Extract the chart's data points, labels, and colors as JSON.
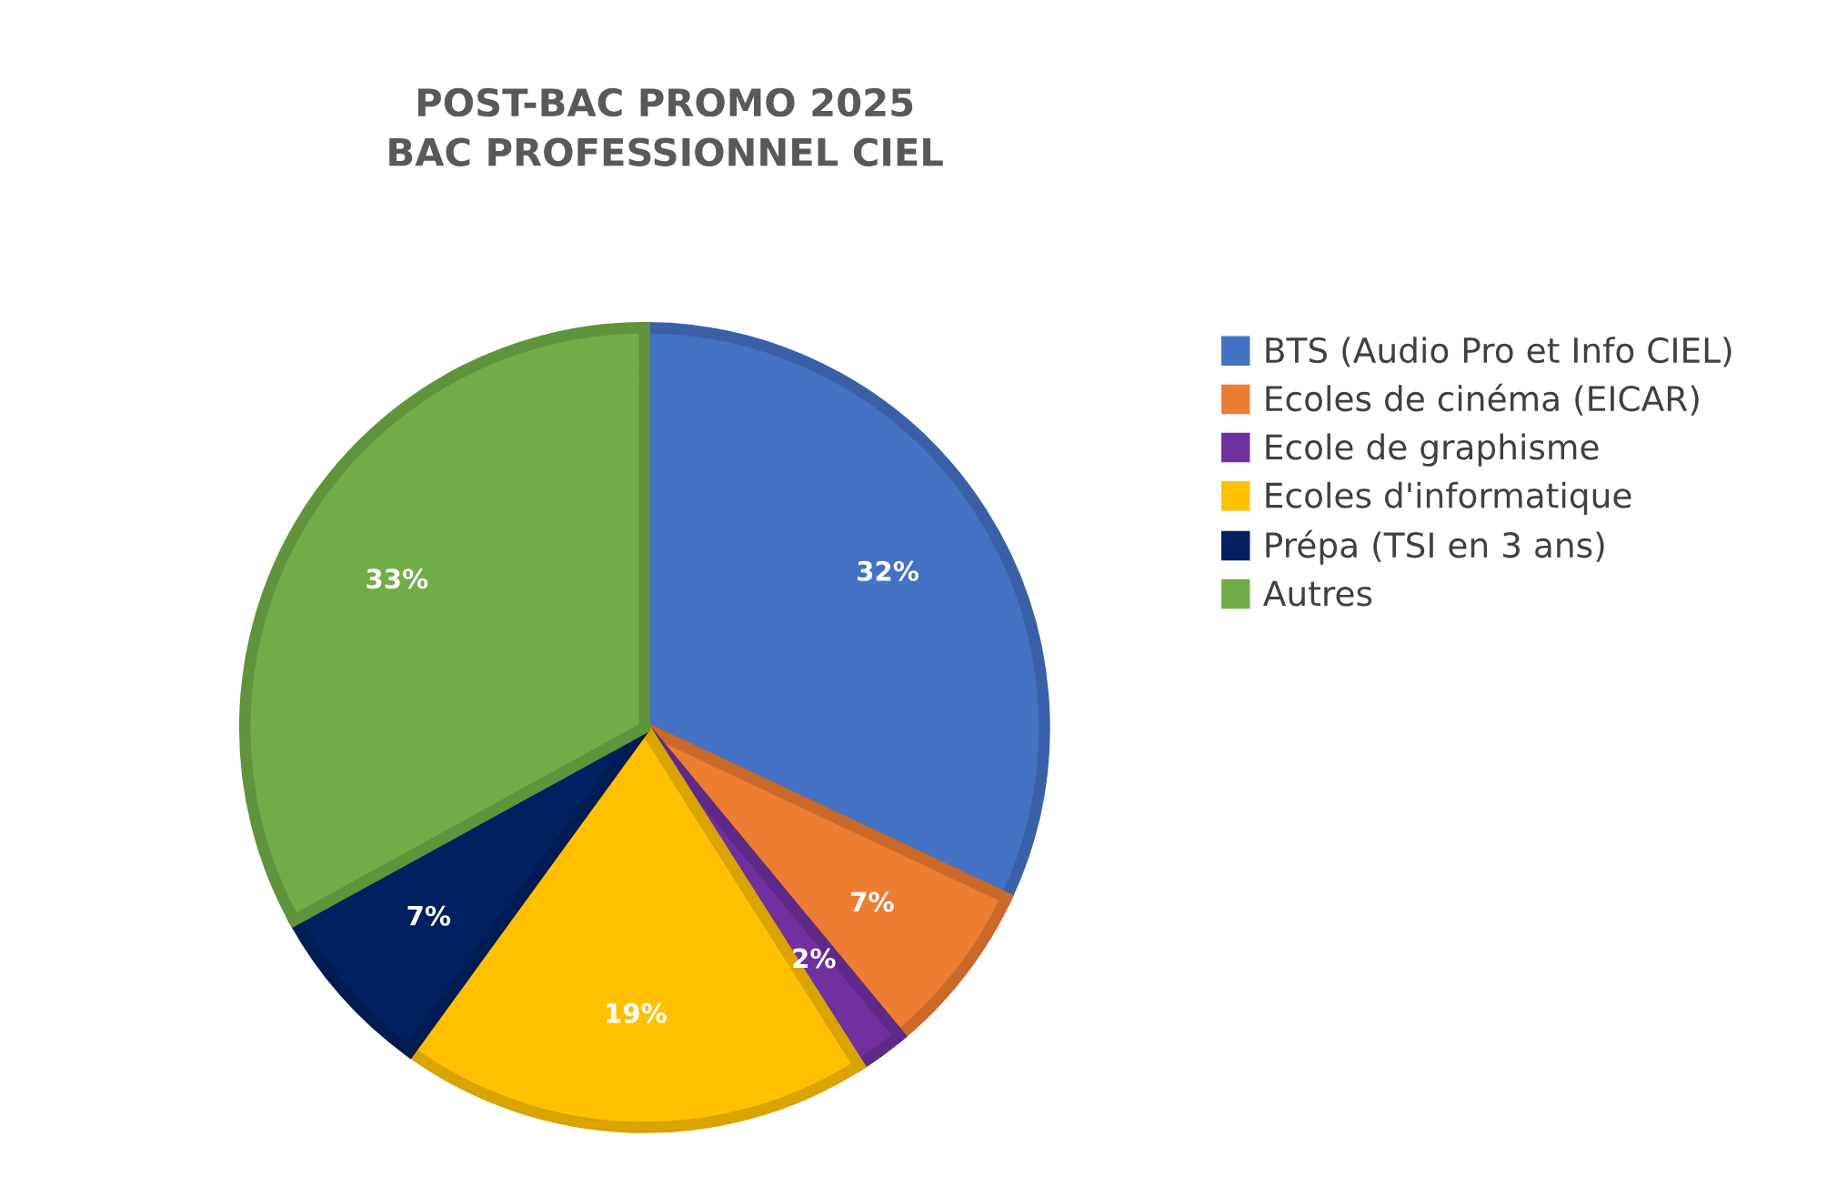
{
  "chart_data": {
    "type": "pie",
    "title": "POST-BAC PROMO 2025\nBAC PROFESSIONNEL CIEL",
    "categories": [
      "BTS (Audio Pro et Info CIEL)",
      "Ecoles de cinéma (EICAR)",
      "Ecole de graphisme",
      "Ecoles d'informatique",
      "Prépa (TSI en 3 ans)",
      "Autres"
    ],
    "values": [
      32,
      7,
      2,
      19,
      7,
      33
    ],
    "colors": [
      "#4472c4",
      "#ed7d31",
      "#7030a0",
      "#ffc000",
      "#002060",
      "#70ad47"
    ],
    "value_labels": [
      "32%",
      "7%",
      "2%",
      "19%",
      "7%",
      "33%"
    ],
    "legend": "right"
  }
}
